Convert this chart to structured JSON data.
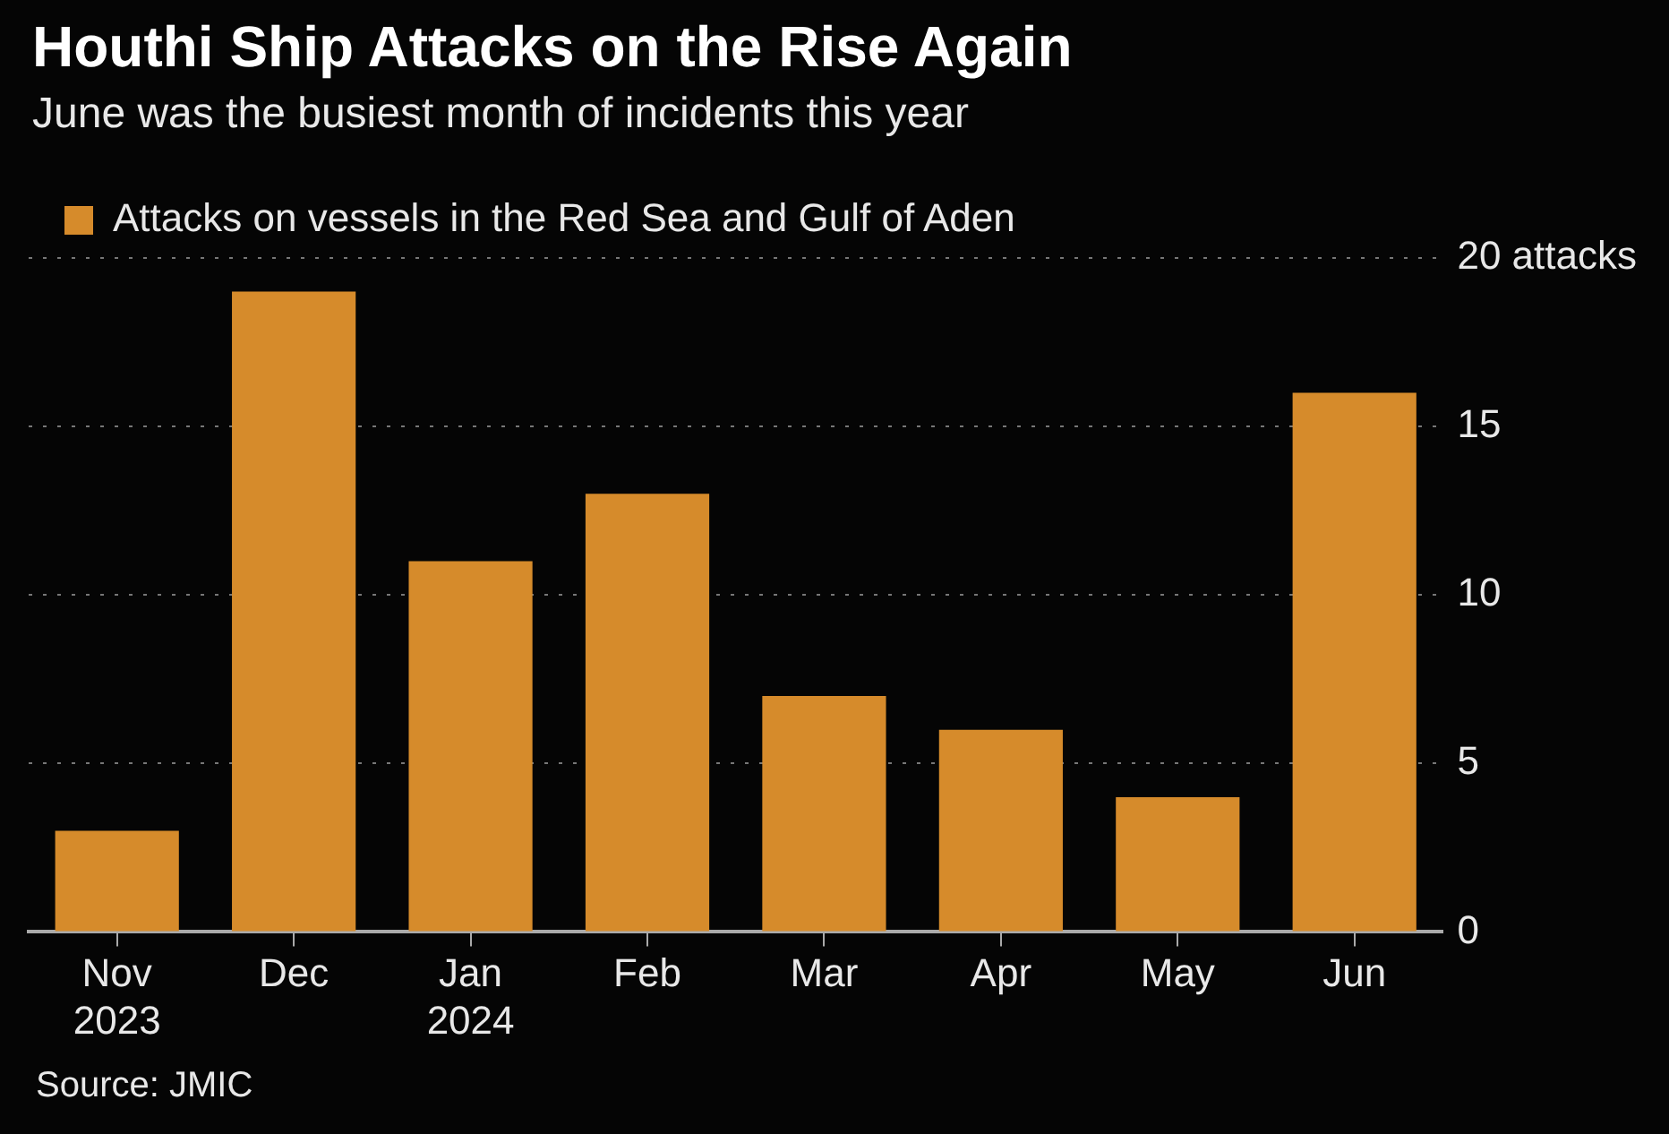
{
  "chart_data": {
    "type": "bar",
    "title": "Houthi Ship Attacks on the Rise Again",
    "subtitle": "June was the busiest month of incidents this year",
    "categories": [
      "Nov 2023",
      "Dec",
      "Jan 2024",
      "Feb",
      "Mar",
      "Apr",
      "May",
      "Jun"
    ],
    "series": [
      {
        "name": "Attacks on vessels in the Red Sea and Gulf of Aden",
        "color": "#d68b2b",
        "values": [
          3,
          19,
          11,
          13,
          7,
          6,
          4,
          16
        ]
      }
    ],
    "ylim": [
      0,
      20
    ],
    "yticks": [
      0,
      5,
      10,
      15,
      {
        "value": 20,
        "label": "20 attacks"
      }
    ],
    "grid": "y",
    "legend": "top left",
    "annotations": [
      "Source: JMIC"
    ]
  }
}
